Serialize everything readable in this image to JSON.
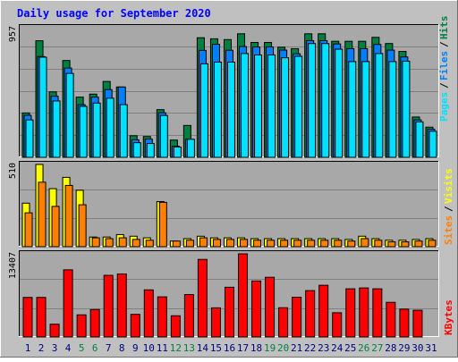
{
  "title": "Daily usage for September 2020",
  "colors": {
    "background": "#c0c0c0",
    "plot": "#a8a8a8",
    "title": "#0000ff",
    "hits": "#008040",
    "files": "#0080ff",
    "files_fill": "#00e0ff",
    "pages": "#00e0ff",
    "visits": "#ffff00",
    "sites": "#ff8000",
    "kbytes": "#ff0000",
    "weekend_label": "#008040",
    "weekday_label": "#000080"
  },
  "chart_data": [
    {
      "type": "bar",
      "name": "hits-files-pages",
      "ymax_label": "957",
      "ymax": 957,
      "legend": [
        "Pages",
        "Files",
        "Hits"
      ],
      "series": [
        {
          "name": "Hits",
          "values": [
            337,
            885,
            497,
            735,
            457,
            480,
            576,
            534,
            164,
            158,
            362,
            131,
            242,
            908,
            900,
            894,
            938,
            872,
            872,
            836,
            825,
            938,
            938,
            881,
            881,
            881,
            911,
            864,
            804,
            306,
            229
          ]
        },
        {
          "name": "Files",
          "values": [
            319,
            765,
            464,
            678,
            400,
            457,
            514,
            534,
            133,
            138,
            338,
            84,
            137,
            812,
            858,
            813,
            841,
            838,
            838,
            814,
            786,
            886,
            886,
            861,
            825,
            825,
            857,
            814,
            762,
            284,
            213
          ]
        },
        {
          "name": "Pages",
          "values": [
            284,
            760,
            428,
            637,
            387,
            412,
            449,
            400,
            111,
            105,
            318,
            78,
            137,
            710,
            723,
            723,
            788,
            777,
            777,
            756,
            767,
            864,
            864,
            821,
            727,
            727,
            788,
            727,
            730,
            269,
            198
          ]
        }
      ]
    },
    {
      "type": "bar",
      "name": "visits-sites",
      "ymax_label": "510",
      "ymax": 510,
      "legend": [
        "Sites",
        "Visits"
      ],
      "series": [
        {
          "name": "Visits",
          "values": [
            270,
            510,
            360,
            430,
            350,
            60,
            60,
            75,
            65,
            55,
            280,
            35,
            50,
            65,
            55,
            55,
            55,
            50,
            50,
            50,
            50,
            50,
            50,
            50,
            45,
            65,
            50,
            40,
            40,
            45,
            50
          ]
        },
        {
          "name": "Sites",
          "values": [
            210,
            400,
            250,
            380,
            260,
            55,
            50,
            55,
            45,
            40,
            275,
            35,
            40,
            55,
            45,
            45,
            45,
            40,
            40,
            40,
            40,
            40,
            40,
            40,
            35,
            50,
            40,
            30,
            30,
            35,
            40
          ]
        }
      ]
    },
    {
      "type": "bar",
      "name": "kbytes",
      "ymax_label": "13407",
      "ymax": 13407,
      "legend": [
        "KBytes"
      ],
      "series": [
        {
          "name": "KBytes",
          "values": [
            6380,
            6380,
            2060,
            10830,
            3570,
            4430,
            9940,
            10170,
            3650,
            7600,
            6470,
            3420,
            6840,
            12510,
            4700,
            8020,
            13407,
            9030,
            9630,
            4720,
            6410,
            7480,
            8340,
            3910,
            7770,
            7910,
            7770,
            5590,
            4490,
            4310,
            null
          ]
        }
      ]
    }
  ],
  "x_labels": [
    "1",
    "2",
    "3",
    "4",
    "5",
    "6",
    "7",
    "8",
    "9",
    "10",
    "11",
    "12",
    "13",
    "14",
    "15",
    "16",
    "17",
    "18",
    "19",
    "20",
    "21",
    "22",
    "23",
    "24",
    "25",
    "26",
    "27",
    "28",
    "29",
    "30",
    "31"
  ],
  "weekend_days": [
    5,
    6,
    12,
    13,
    19,
    20,
    26,
    27
  ]
}
